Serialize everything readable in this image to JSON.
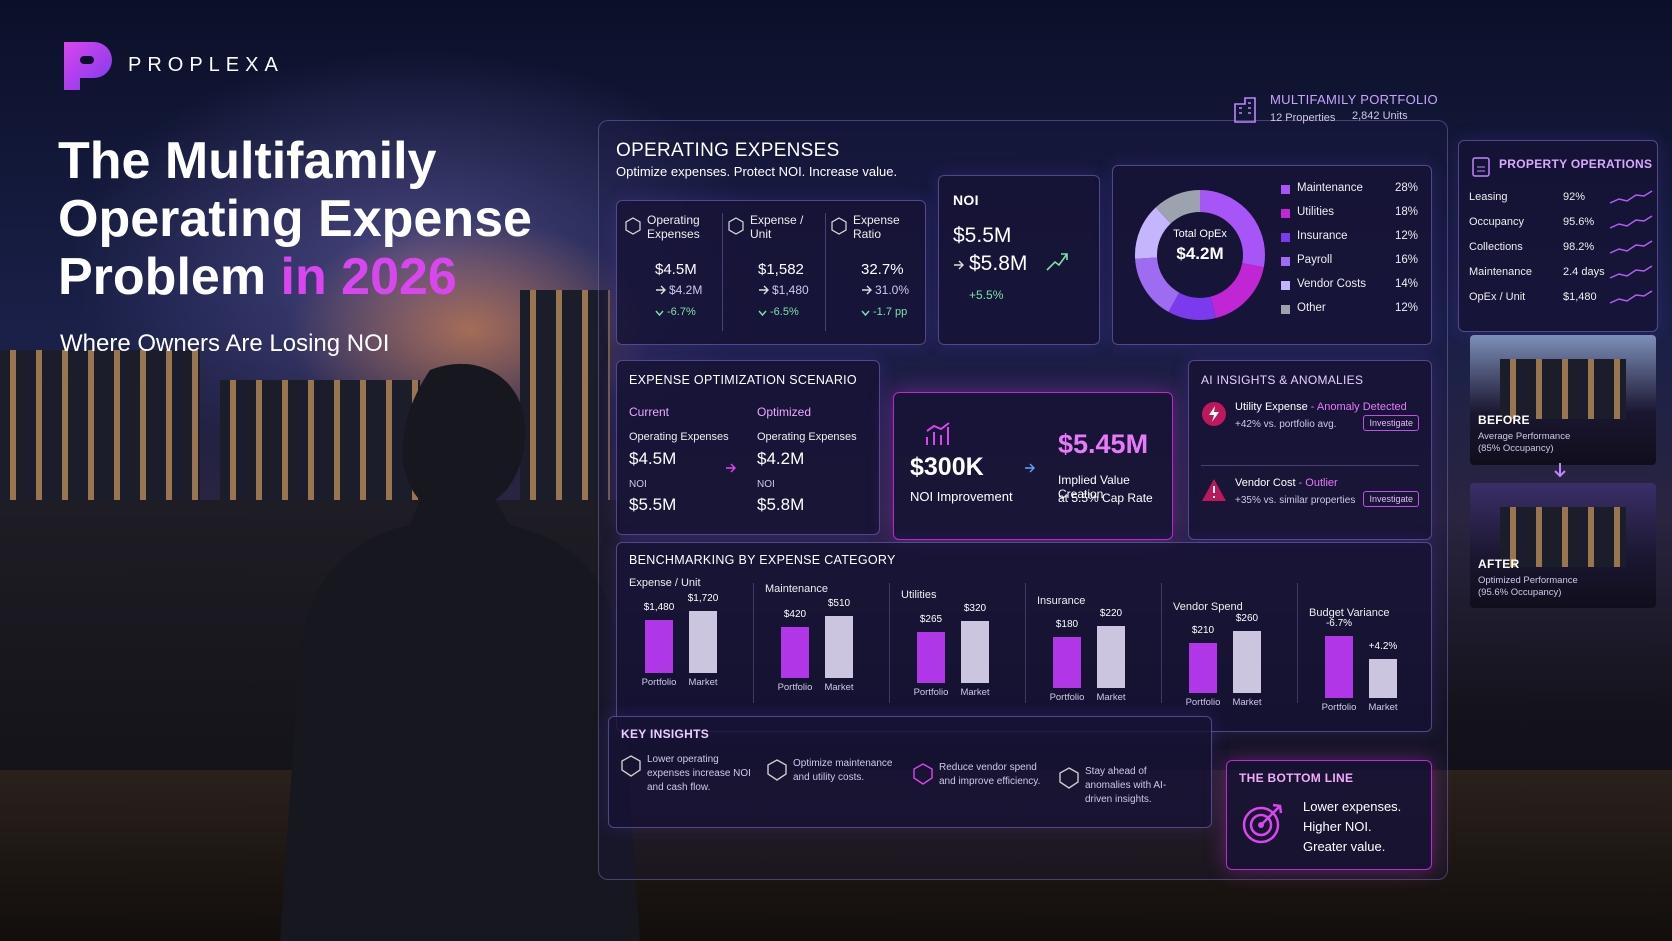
{
  "brand": "PROPLEXA",
  "headline": {
    "line1": "The Multifamily",
    "line2": "Operating Expense",
    "line3": "Problem",
    "highlight": "in 2026",
    "subtitle": "Where Owners Are Losing NOI"
  },
  "portfolio": {
    "title": "MULTIFAMILY PORTFOLIO",
    "properties": "12 Properties",
    "units": "2,842 Units"
  },
  "opex": {
    "title": "OPERATING EXPENSES",
    "subtitle": "Optimize expenses. Protect NOI. Increase value.",
    "kpis": [
      {
        "label": "Operating Expenses",
        "value": "$4.5M",
        "target": "$4.2M",
        "change": "-6.7%"
      },
      {
        "label": "Expense / Unit",
        "value": "$1,582",
        "target": "$1,480",
        "change": "-6.5%"
      },
      {
        "label": "Expense Ratio",
        "value": "32.7%",
        "target": "31.0%",
        "change": "-1.7 pp"
      }
    ],
    "noi": {
      "label": "NOI",
      "value": "$5.5M",
      "target": "$5.8M",
      "change": "+5.5%"
    },
    "donut": {
      "center_label": "Total OpEx",
      "center_value": "$4.2M",
      "items": [
        {
          "name": "Maintenance",
          "value": 28,
          "label": "28%",
          "color": "#a855f7"
        },
        {
          "name": "Utilities",
          "value": 18,
          "label": "18%",
          "color": "#c026d3"
        },
        {
          "name": "Insurance",
          "value": 12,
          "label": "12%",
          "color": "#7c3aed"
        },
        {
          "name": "Payroll",
          "value": 16,
          "label": "16%",
          "color": "#9d6cf0"
        },
        {
          "name": "Vendor Costs",
          "value": 14,
          "label": "14%",
          "color": "#c4b5fd"
        },
        {
          "name": "Other",
          "value": 12,
          "label": "12%",
          "color": "#9ca3af"
        }
      ]
    }
  },
  "property_operations": {
    "title": "PROPERTY OPERATIONS",
    "rows": [
      {
        "name": "Leasing",
        "value": "92%"
      },
      {
        "name": "Occupancy",
        "value": "95.6%"
      },
      {
        "name": "Collections",
        "value": "98.2%"
      },
      {
        "name": "Maintenance",
        "value": "2.4 days"
      },
      {
        "name": "OpEx / Unit",
        "value": "$1,480"
      }
    ]
  },
  "before": {
    "title": "BEFORE",
    "line1": "Average Performance",
    "line2": "(85% Occupancy)"
  },
  "after": {
    "title": "AFTER",
    "line1": "Optimized Performance",
    "line2": "(95.6% Occupancy)"
  },
  "scenario": {
    "title": "EXPENSE OPTIMIZATION SCENARIO",
    "current": {
      "heading": "Current",
      "opex_label": "Operating Expenses",
      "opex": "$4.5M",
      "noi_label": "NOI",
      "noi": "$5.5M"
    },
    "optimized": {
      "heading": "Optimized",
      "opex_label": "Operating Expenses",
      "opex": "$4.2M",
      "noi_label": "NOI",
      "noi": "$5.8M"
    }
  },
  "improvement": {
    "value": "$300K",
    "label": "NOI Improvement",
    "value2": "$5.45M",
    "label2_line1": "Implied Value Creation",
    "label2_line2": "at 5.5% Cap Rate"
  },
  "ai": {
    "title": "AI INSIGHTS & ANOMALIES",
    "items": [
      {
        "name": "Utility Expense",
        "tag": "- Anomaly Detected",
        "detail": "+42% vs. portfolio avg.",
        "action": "Investigate"
      },
      {
        "name": "Vendor Cost",
        "tag": "- Outlier",
        "detail": "+35% vs. similar properties",
        "action": "Investigate"
      }
    ]
  },
  "benchmarking": {
    "title": "BENCHMARKING BY EXPENSE CATEGORY",
    "groups": [
      {
        "name": "Expense / Unit",
        "bars": [
          {
            "name": "Portfolio",
            "value": 1480,
            "label": "$1,480"
          },
          {
            "name": "Market",
            "value": 1720,
            "label": "$1,720"
          }
        ]
      },
      {
        "name": "Maintenance",
        "bars": [
          {
            "name": "Portfolio",
            "value": 420,
            "label": "$420"
          },
          {
            "name": "Market",
            "value": 510,
            "label": "$510"
          }
        ]
      },
      {
        "name": "Utilities",
        "bars": [
          {
            "name": "Portfolio",
            "value": 265,
            "label": "$265"
          },
          {
            "name": "Market",
            "value": 320,
            "label": "$320"
          }
        ]
      },
      {
        "name": "Insurance",
        "bars": [
          {
            "name": "Portfolio",
            "value": 180,
            "label": "$180"
          },
          {
            "name": "Market",
            "value": 220,
            "label": "$220"
          }
        ]
      },
      {
        "name": "Vendor Spend",
        "bars": [
          {
            "name": "Portfolio",
            "value": 210,
            "label": "$210"
          },
          {
            "name": "Market",
            "value": 260,
            "label": "$260"
          }
        ]
      },
      {
        "name": "Budget Variance",
        "bars": [
          {
            "name": "Portfolio",
            "value": -6.7,
            "label": "-6.7%"
          },
          {
            "name": "Market",
            "value": 4.2,
            "label": "+4.2%"
          }
        ]
      }
    ]
  },
  "key_insights": {
    "title": "KEY INSIGHTS",
    "items": [
      "Lower operating expenses increase NOI and cash flow.",
      "Optimize maintenance and utility costs.",
      "Reduce vendor spend and improve efficiency.",
      "Stay ahead of anomalies with AI-driven insights."
    ]
  },
  "bottom_line": {
    "title": "THE BOTTOM LINE",
    "lines": [
      "Lower expenses.",
      "Higher NOI.",
      "Greater value."
    ]
  }
}
